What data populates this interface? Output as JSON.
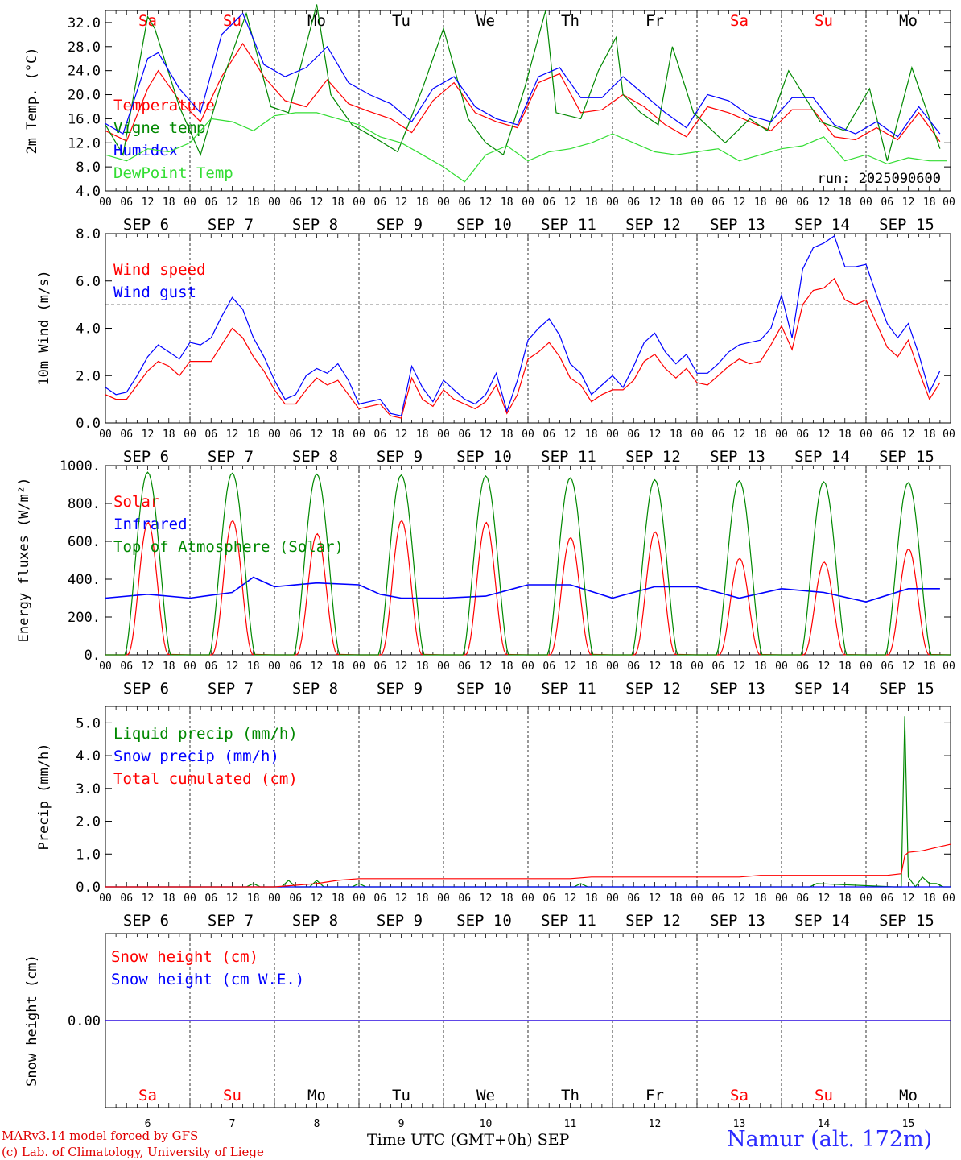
{
  "footer": {
    "credit_line1": "MARv3.14 model forced by GFS",
    "credit_line2": "(c) Lab. of Climatology, University of Liege",
    "xaxis_label": "Time UTC (GMT+0h)",
    "month_label": "SEP",
    "station": "Namur (alt. 172m)"
  },
  "colors": {
    "red": "#ff0000",
    "green": "#008800",
    "blue": "#0000ff",
    "lightgreen": "#33dd33",
    "grid": "#000000"
  },
  "days": {
    "weekdays": [
      "Sa",
      "Su",
      "Mo",
      "Tu",
      "We",
      "Th",
      "Fr",
      "Sa",
      "Su",
      "Mo"
    ],
    "weekend": [
      true,
      true,
      false,
      false,
      false,
      false,
      false,
      true,
      true,
      false
    ],
    "dates": [
      "SEP  6",
      "SEP  7",
      "SEP  8",
      "SEP  9",
      "SEP 10",
      "SEP 11",
      "SEP 12",
      "SEP 13",
      "SEP 14",
      "SEP 15"
    ],
    "day_numbers": [
      "6",
      "7",
      "8",
      "9",
      "10",
      "11",
      "12",
      "13",
      "14",
      "15"
    ],
    "hour_ticks": [
      "00",
      "06",
      "12",
      "18"
    ],
    "final_tick": "00"
  },
  "chart_data": [
    {
      "type": "line",
      "ylabel": "2m Temp. (°C)",
      "ylim": [
        4,
        34
      ],
      "yticks": [
        "4.0",
        "8.0",
        "12.0",
        "16.0",
        "20.0",
        "24.0",
        "28.0",
        "32.0"
      ],
      "run_label": "run: 2025090600",
      "x_unit": "hours since 2025-09-06 00 UTC",
      "series": [
        {
          "name": "Temperature",
          "color": "red",
          "x": [
            0,
            6,
            12,
            15,
            21,
            27,
            33,
            39,
            45,
            51,
            57,
            63,
            69,
            75,
            81,
            87,
            93,
            99,
            105,
            111,
            117,
            123,
            129,
            135,
            141,
            147,
            153,
            159,
            165,
            171,
            177,
            183,
            189,
            195,
            201,
            207,
            213,
            219,
            225,
            231,
            237
          ],
          "values": [
            14,
            12.3,
            21,
            24,
            19,
            15.5,
            23,
            28.5,
            23,
            19,
            18,
            22.5,
            18.5,
            17.2,
            16,
            13.7,
            19,
            22,
            17,
            15.5,
            14.5,
            22,
            23.5,
            17,
            17.5,
            20,
            18,
            15,
            13,
            18,
            17,
            15.5,
            14,
            17.5,
            17.5,
            13,
            12.5,
            14.5,
            12.5,
            17,
            12.2
          ]
        },
        {
          "name": "Vigne temp",
          "color": "green",
          "x": [
            0,
            5,
            12,
            14,
            21,
            27,
            33,
            40,
            47,
            52,
            60,
            64,
            70,
            76,
            83,
            90,
            96,
            103,
            108,
            113,
            119,
            125,
            128,
            135,
            140,
            145,
            147,
            152,
            157,
            161,
            167,
            176,
            183,
            188,
            194,
            203,
            210,
            217,
            222,
            229,
            237
          ],
          "values": [
            15,
            10,
            33,
            31,
            18,
            10,
            22,
            33.5,
            18,
            17,
            35,
            20,
            15,
            13,
            10.5,
            21,
            31,
            16,
            12,
            10,
            21,
            34,
            17,
            16,
            24,
            29.5,
            20,
            17,
            15,
            28,
            17,
            12,
            16,
            14,
            24,
            15.5,
            14,
            21,
            9,
            24.5,
            11
          ]
        },
        {
          "name": "Humidex",
          "color": "blue",
          "x": [
            0,
            5,
            12,
            15,
            21,
            27,
            33,
            39,
            45,
            51,
            57,
            63,
            69,
            75,
            81,
            87,
            93,
            99,
            105,
            111,
            117,
            123,
            129,
            135,
            141,
            147,
            153,
            159,
            165,
            171,
            177,
            183,
            189,
            195,
            201,
            207,
            213,
            219,
            225,
            231,
            237
          ],
          "values": [
            15.2,
            13.5,
            26,
            27,
            21,
            17,
            30,
            33.5,
            25,
            23,
            24.5,
            28,
            22,
            20,
            18.5,
            15.5,
            21,
            23,
            18,
            16,
            15,
            23,
            24.5,
            19.5,
            19.5,
            23,
            20,
            17,
            14.5,
            20,
            19,
            16.5,
            15.5,
            19.5,
            19.5,
            15,
            13.5,
            15.5,
            13,
            18,
            13.5
          ]
        },
        {
          "name": "DewPoint Temp",
          "color": "lightgreen",
          "x": [
            0,
            6,
            12,
            18,
            24,
            30,
            36,
            42,
            48,
            54,
            60,
            66,
            72,
            78,
            84,
            90,
            96,
            102,
            108,
            114,
            120,
            126,
            132,
            138,
            144,
            150,
            156,
            162,
            168,
            174,
            180,
            186,
            192,
            198,
            204,
            210,
            216,
            222,
            228,
            234,
            239
          ],
          "values": [
            10,
            9,
            11,
            10.5,
            12,
            16,
            15.5,
            14,
            16.5,
            17,
            17,
            16,
            15,
            13,
            12,
            10,
            8,
            5.5,
            10,
            11.5,
            9,
            10.5,
            11,
            12,
            13.5,
            12,
            10.5,
            10,
            10.5,
            11,
            9,
            10,
            11,
            11.5,
            13,
            9,
            10,
            8.5,
            9.5,
            9,
            9
          ]
        }
      ]
    },
    {
      "type": "line",
      "ylabel": "10m Wind (m/s)",
      "ylim": [
        0,
        8
      ],
      "yticks": [
        "0.0",
        "2.0",
        "4.0",
        "6.0",
        "8.0"
      ],
      "reference_line": 5,
      "x_unit": "hours since 2025-09-06 00 UTC",
      "series": [
        {
          "name": "Wind speed",
          "color": "red",
          "x": [
            0,
            3,
            6,
            9,
            12,
            15,
            18,
            21,
            24,
            27,
            30,
            33,
            36,
            39,
            42,
            45,
            48,
            51,
            54,
            57,
            60,
            63,
            66,
            69,
            72,
            75,
            78,
            81,
            84,
            87,
            90,
            93,
            96,
            99,
            102,
            105,
            108,
            111,
            114,
            117,
            120,
            123,
            126,
            129,
            132,
            135,
            138,
            141,
            144,
            147,
            150,
            153,
            156,
            159,
            162,
            165,
            168,
            171,
            174,
            177,
            180,
            183,
            186,
            189,
            192,
            195,
            198,
            201,
            204,
            207,
            210,
            213,
            216,
            219,
            222,
            225,
            228,
            231,
            234,
            237
          ],
          "values": [
            1.2,
            1,
            1,
            1.6,
            2.2,
            2.6,
            2.4,
            2,
            2.6,
            2.6,
            2.6,
            3.3,
            4,
            3.6,
            2.8,
            2.2,
            1.4,
            0.8,
            0.8,
            1.4,
            1.9,
            1.6,
            1.8,
            1.2,
            0.6,
            0.7,
            0.8,
            0.3,
            0.2,
            1.9,
            1,
            0.7,
            1.4,
            1,
            0.8,
            0.6,
            0.9,
            1.6,
            0.4,
            1.2,
            2.7,
            3,
            3.4,
            2.8,
            1.9,
            1.6,
            0.9,
            1.2,
            1.4,
            1.4,
            1.8,
            2.6,
            2.9,
            2.3,
            1.9,
            2.3,
            1.7,
            1.6,
            2,
            2.4,
            2.7,
            2.5,
            2.6,
            3.3,
            4.1,
            3.1,
            5,
            5.6,
            5.7,
            6.1,
            5.2,
            5,
            5.2,
            4.2,
            3.2,
            2.8,
            3.5,
            2.2,
            1,
            1.7
          ]
        },
        {
          "name": "Wind gust",
          "color": "blue",
          "x": [
            0,
            3,
            6,
            9,
            12,
            15,
            18,
            21,
            24,
            27,
            30,
            33,
            36,
            39,
            42,
            45,
            48,
            51,
            54,
            57,
            60,
            63,
            66,
            69,
            72,
            75,
            78,
            81,
            84,
            87,
            90,
            93,
            96,
            99,
            102,
            105,
            108,
            111,
            114,
            117,
            120,
            123,
            126,
            129,
            132,
            135,
            138,
            141,
            144,
            147,
            150,
            153,
            156,
            159,
            162,
            165,
            168,
            171,
            174,
            177,
            180,
            183,
            186,
            189,
            192,
            195,
            198,
            201,
            204,
            207,
            210,
            213,
            216,
            219,
            222,
            225,
            228,
            231,
            234,
            237
          ],
          "values": [
            1.5,
            1.2,
            1.3,
            2,
            2.8,
            3.3,
            3,
            2.7,
            3.4,
            3.3,
            3.6,
            4.5,
            5.3,
            4.8,
            3.6,
            2.8,
            1.8,
            1,
            1.2,
            2,
            2.3,
            2.1,
            2.5,
            1.8,
            0.8,
            0.9,
            1,
            0.4,
            0.3,
            2.4,
            1.5,
            0.9,
            1.8,
            1.4,
            1,
            0.8,
            1.2,
            2.1,
            0.5,
            1.8,
            3.5,
            4,
            4.4,
            3.7,
            2.5,
            2.1,
            1.2,
            1.6,
            2,
            1.5,
            2.4,
            3.4,
            3.8,
            3,
            2.5,
            2.9,
            2.1,
            2.1,
            2.5,
            3,
            3.3,
            3.4,
            3.5,
            4,
            5.4,
            3.6,
            6.5,
            7.4,
            7.6,
            7.9,
            6.6,
            6.6,
            6.7,
            5.4,
            4.2,
            3.6,
            4.2,
            2.9,
            1.3,
            2.2
          ]
        }
      ]
    },
    {
      "type": "line",
      "ylabel": "Energy fluxes (W/m²)",
      "ylim": [
        0,
        1000
      ],
      "yticks": [
        "0.",
        "200.",
        "400.",
        "600.",
        "800.",
        "1000."
      ],
      "x_unit": "hours since 2025-09-06 00 UTC",
      "series": [
        {
          "name": "Solar",
          "color": "red",
          "peaks": [
            700,
            710,
            640,
            710,
            700,
            620,
            650,
            510,
            490,
            560
          ]
        },
        {
          "name": "Infrared",
          "color": "blue",
          "x": [
            0,
            12,
            24,
            36,
            42,
            48,
            60,
            72,
            78,
            84,
            96,
            108,
            120,
            132,
            144,
            156,
            168,
            180,
            192,
            204,
            216,
            228,
            237
          ],
          "values": [
            300,
            320,
            300,
            330,
            410,
            360,
            380,
            370,
            320,
            300,
            300,
            310,
            370,
            370,
            300,
            360,
            360,
            300,
            350,
            330,
            280,
            350,
            350
          ]
        },
        {
          "name": "Top of Atmosphere (Solar)",
          "color": "green",
          "peaks": [
            965,
            960,
            955,
            950,
            945,
            935,
            925,
            920,
            915,
            910
          ]
        }
      ]
    },
    {
      "type": "line",
      "ylabel": "Precip (mm/h)",
      "ylim": [
        0,
        5.5
      ],
      "yticks": [
        "0.0",
        "1.0",
        "2.0",
        "3.0",
        "4.0",
        "5.0"
      ],
      "x_unit": "hours since 2025-09-06 00 UTC",
      "series": [
        {
          "name": "Liquid precip (mm/h)",
          "color": "green",
          "x": [
            0,
            40,
            42,
            44,
            50,
            52,
            54,
            58,
            60,
            62,
            70,
            72,
            74,
            80,
            133,
            135,
            137,
            139,
            200,
            202,
            224,
            226,
            227,
            228,
            230,
            232,
            234,
            236,
            238,
            240
          ],
          "values": [
            0,
            0,
            0.1,
            0,
            0,
            0.2,
            0,
            0,
            0.2,
            0,
            0,
            0.1,
            0,
            0,
            0,
            0.1,
            0,
            0,
            0,
            0.1,
            0,
            0,
            5.2,
            0.3,
            0,
            0.3,
            0.1,
            0.1,
            0,
            0
          ]
        },
        {
          "name": "Snow precip (mm/h)",
          "color": "blue",
          "x": [
            0,
            240
          ],
          "values": [
            0,
            0
          ]
        },
        {
          "name": "Total cumulated (cm)",
          "color": "red",
          "x": [
            0,
            48,
            54,
            60,
            66,
            72,
            132,
            138,
            180,
            186,
            192,
            198,
            222,
            226,
            227,
            228,
            232,
            236,
            240
          ],
          "values": [
            0,
            0,
            0.05,
            0.1,
            0.2,
            0.25,
            0.25,
            0.3,
            0.3,
            0.35,
            0.35,
            0.35,
            0.35,
            0.4,
            0.95,
            1.05,
            1.1,
            1.2,
            1.3
          ]
        }
      ]
    },
    {
      "type": "line",
      "ylabel": "Snow height (cm)",
      "yticks": [
        "0.00"
      ],
      "x_unit": "hours since 2025-09-06 00 UTC",
      "series": [
        {
          "name": "Snow height (cm)",
          "color": "red",
          "x": [
            0,
            240
          ],
          "values": [
            0,
            0
          ]
        },
        {
          "name": "Snow height (cm W.E.)",
          "color": "blue",
          "x": [
            0,
            240
          ],
          "values": [
            0,
            0
          ]
        }
      ]
    }
  ]
}
